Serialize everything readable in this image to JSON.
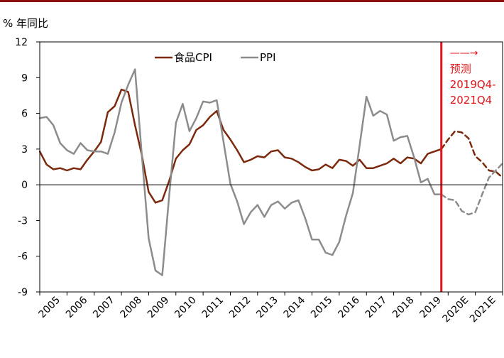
{
  "chart_data": {
    "type": "line",
    "title": "",
    "ylabel": "% 年同比",
    "xlabel": "",
    "ylim": [
      -9,
      12
    ],
    "yticks": [
      -9,
      -6,
      -3,
      0,
      3,
      6,
      9,
      12
    ],
    "x_range": [
      2005.0,
      2022.0
    ],
    "x_tick_labels": [
      "2005",
      "2006",
      "2007",
      "2008",
      "2009",
      "2010",
      "2011",
      "2012",
      "2013",
      "2014",
      "2015",
      "2016",
      "2017",
      "2018",
      "2019",
      "2020E",
      "2021E"
    ],
    "legend": {
      "position": "top-center"
    },
    "forecast_marker": {
      "x": 2019.75,
      "arrow_text": "——→",
      "label_lines": [
        "预测",
        "2019Q4-",
        "2021Q4"
      ]
    },
    "series": [
      {
        "name": "食品CPI",
        "color": "#7b2a0e",
        "style": "solid",
        "x": [
          2005.0,
          2005.25,
          2005.5,
          2005.75,
          2006.0,
          2006.25,
          2006.5,
          2006.75,
          2007.0,
          2007.25,
          2007.5,
          2007.75,
          2008.0,
          2008.25,
          2008.5,
          2008.75,
          2009.0,
          2009.25,
          2009.5,
          2009.75,
          2010.0,
          2010.25,
          2010.5,
          2010.75,
          2011.0,
          2011.25,
          2011.5,
          2011.75,
          2012.0,
          2012.25,
          2012.5,
          2012.75,
          2013.0,
          2013.25,
          2013.5,
          2013.75,
          2014.0,
          2014.25,
          2014.5,
          2014.75,
          2015.0,
          2015.25,
          2015.5,
          2015.75,
          2016.0,
          2016.25,
          2016.5,
          2016.75,
          2017.0,
          2017.25,
          2017.5,
          2017.75,
          2018.0,
          2018.25,
          2018.5,
          2018.75,
          2019.0,
          2019.25,
          2019.5,
          2019.75
        ],
        "values": [
          2.8,
          1.7,
          1.3,
          1.4,
          1.2,
          1.4,
          1.3,
          2.1,
          2.8,
          3.6,
          6.1,
          6.6,
          8.0,
          7.8,
          5.0,
          2.5,
          -0.6,
          -1.5,
          -1.3,
          0.3,
          2.2,
          2.9,
          3.4,
          4.6,
          5.0,
          5.7,
          6.2,
          4.6,
          3.8,
          2.9,
          1.9,
          2.1,
          2.4,
          2.3,
          2.8,
          2.9,
          2.3,
          2.2,
          1.9,
          1.5,
          1.2,
          1.3,
          1.7,
          1.4,
          2.1,
          2.0,
          1.6,
          2.1,
          1.4,
          1.4,
          1.6,
          1.8,
          2.2,
          1.8,
          2.3,
          2.2,
          1.8,
          2.6,
          2.8,
          3.0
        ]
      },
      {
        "name": "",
        "color": "#7b2a0e",
        "style": "dashed",
        "x": [
          2019.75,
          2020.0,
          2020.25,
          2020.5,
          2020.75,
          2021.0,
          2021.25,
          2021.5,
          2021.75,
          2022.0
        ],
        "values": [
          3.0,
          3.8,
          4.5,
          4.4,
          3.9,
          2.4,
          1.9,
          1.2,
          1.1,
          0.6
        ]
      },
      {
        "name": "PPI",
        "color": "#8c8c8c",
        "style": "solid",
        "x": [
          2005.0,
          2005.25,
          2005.5,
          2005.75,
          2006.0,
          2006.25,
          2006.5,
          2006.75,
          2007.0,
          2007.25,
          2007.5,
          2007.75,
          2008.0,
          2008.25,
          2008.5,
          2008.75,
          2009.0,
          2009.25,
          2009.5,
          2009.75,
          2010.0,
          2010.25,
          2010.5,
          2010.75,
          2011.0,
          2011.25,
          2011.5,
          2011.75,
          2012.0,
          2012.25,
          2012.5,
          2012.75,
          2013.0,
          2013.25,
          2013.5,
          2013.75,
          2014.0,
          2014.25,
          2014.5,
          2014.75,
          2015.0,
          2015.25,
          2015.5,
          2015.75,
          2016.0,
          2016.25,
          2016.5,
          2016.75,
          2017.0,
          2017.25,
          2017.5,
          2017.75,
          2018.0,
          2018.25,
          2018.5,
          2018.75,
          2019.0,
          2019.25,
          2019.5,
          2019.75
        ],
        "values": [
          5.6,
          5.7,
          5.0,
          3.5,
          2.9,
          2.6,
          3.5,
          2.9,
          2.8,
          2.8,
          2.6,
          4.4,
          6.9,
          8.4,
          9.7,
          2.5,
          -4.5,
          -7.2,
          -7.6,
          -1.0,
          5.2,
          6.8,
          4.5,
          5.6,
          7.0,
          6.9,
          7.1,
          3.6,
          0.1,
          -1.4,
          -3.3,
          -2.3,
          -1.7,
          -2.7,
          -1.7,
          -1.4,
          -2.0,
          -1.5,
          -1.3,
          -2.8,
          -4.6,
          -4.6,
          -5.7,
          -5.9,
          -4.8,
          -2.6,
          -0.7,
          3.3,
          7.4,
          5.8,
          6.2,
          5.9,
          3.7,
          4.0,
          4.1,
          2.3,
          0.2,
          0.5,
          -0.8,
          -0.8
        ]
      },
      {
        "name": "",
        "color": "#8c8c8c",
        "style": "dashed",
        "x": [
          2019.75,
          2020.0,
          2020.25,
          2020.5,
          2020.75,
          2021.0,
          2021.25,
          2021.5,
          2021.75,
          2022.0
        ],
        "values": [
          -0.8,
          -1.2,
          -1.3,
          -2.2,
          -2.5,
          -2.3,
          -0.8,
          0.6,
          1.2,
          1.8
        ]
      }
    ]
  }
}
